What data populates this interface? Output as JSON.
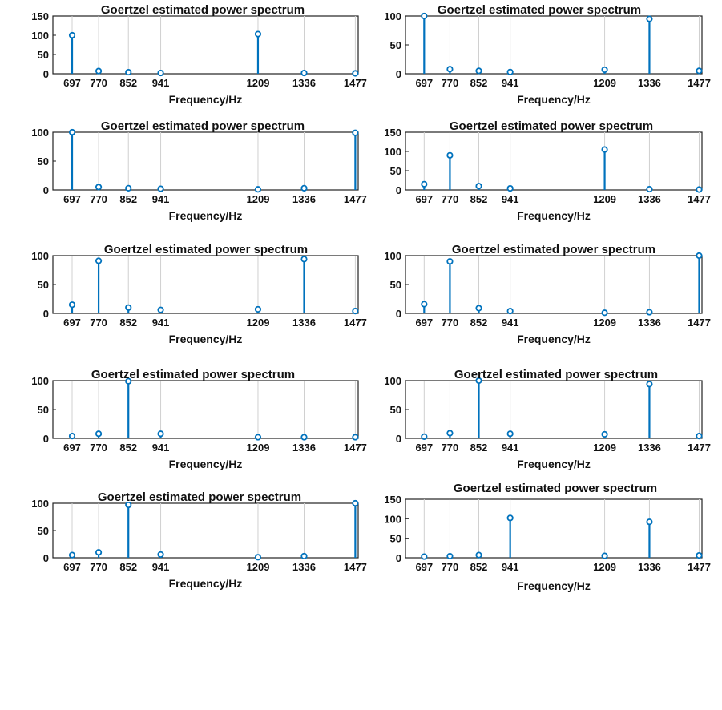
{
  "chart_data": [
    {
      "type": "stem",
      "title": "Goertzel estimated power spectrum",
      "xlabel": "Frequency/Hz",
      "ylabel": "",
      "x": [
        697,
        770,
        852,
        941,
        1209,
        1336,
        1477
      ],
      "xticks": [
        "697",
        "770",
        "852",
        "941",
        "1209",
        "1336",
        "1477"
      ],
      "y": [
        100,
        7,
        4,
        2,
        103,
        2,
        1
      ],
      "ylim": [
        0,
        150
      ],
      "yticks": [
        0,
        50,
        100,
        150
      ],
      "grid": "x",
      "color": "#0072BD"
    },
    {
      "type": "stem",
      "title": "Goertzel estimated power spectrum",
      "xlabel": "Frequency/Hz",
      "ylabel": "",
      "x": [
        697,
        770,
        852,
        941,
        1209,
        1336,
        1477
      ],
      "xticks": [
        "697",
        "770",
        "852",
        "941",
        "1209",
        "1336",
        "1477"
      ],
      "y": [
        100,
        8,
        5,
        3,
        7,
        95,
        5
      ],
      "ylim": [
        0,
        100
      ],
      "yticks": [
        0,
        50,
        100
      ],
      "grid": "x",
      "color": "#0072BD"
    },
    {
      "type": "stem",
      "title": "Goertzel estimated power spectrum",
      "xlabel": "Frequency/Hz",
      "ylabel": "",
      "x": [
        697,
        770,
        852,
        941,
        1209,
        1336,
        1477
      ],
      "xticks": [
        "697",
        "770",
        "852",
        "941",
        "1209",
        "1336",
        "1477"
      ],
      "y": [
        100,
        5,
        3,
        2,
        1,
        3,
        99
      ],
      "ylim": [
        0,
        100
      ],
      "yticks": [
        0,
        50,
        100
      ],
      "grid": "x",
      "color": "#0072BD"
    },
    {
      "type": "stem",
      "title": "Goertzel estimated power spectrum",
      "xlabel": "Frequency/Hz",
      "ylabel": "",
      "x": [
        697,
        770,
        852,
        941,
        1209,
        1336,
        1477
      ],
      "xticks": [
        "697",
        "770",
        "852",
        "941",
        "1209",
        "1336",
        "1477"
      ],
      "y": [
        15,
        90,
        10,
        4,
        105,
        2,
        1
      ],
      "ylim": [
        0,
        150
      ],
      "yticks": [
        0,
        50,
        100,
        150
      ],
      "grid": "x",
      "color": "#0072BD"
    },
    {
      "type": "stem",
      "title": "Goertzel estimated power spectrum",
      "xlabel": "Frequency/Hz",
      "ylabel": "",
      "x": [
        697,
        770,
        852,
        941,
        1209,
        1336,
        1477
      ],
      "xticks": [
        "697",
        "770",
        "852",
        "941",
        "1209",
        "1336",
        "1477"
      ],
      "y": [
        15,
        91,
        10,
        6,
        7,
        94,
        4
      ],
      "ylim": [
        0,
        100
      ],
      "yticks": [
        0,
        50,
        100
      ],
      "grid": "x",
      "color": "#0072BD"
    },
    {
      "type": "stem",
      "title": "Goertzel estimated power spectrum",
      "xlabel": "Frequency/Hz",
      "ylabel": "",
      "x": [
        697,
        770,
        852,
        941,
        1209,
        1336,
        1477
      ],
      "xticks": [
        "697",
        "770",
        "852",
        "941",
        "1209",
        "1336",
        "1477"
      ],
      "y": [
        16,
        90,
        9,
        4,
        1,
        2,
        100
      ],
      "ylim": [
        0,
        100
      ],
      "yticks": [
        0,
        50,
        100
      ],
      "grid": "x",
      "color": "#0072BD"
    },
    {
      "type": "stem",
      "title": "Goertzel estimated power spectrum",
      "xlabel": "Frequency/Hz",
      "ylabel": "",
      "x": [
        697,
        770,
        852,
        941,
        1209,
        1336,
        1477
      ],
      "xticks": [
        "697",
        "770",
        "852",
        "941",
        "1209",
        "1336",
        "1477"
      ],
      "y": [
        4,
        8,
        99,
        8,
        2,
        2,
        2
      ],
      "ylim": [
        0,
        100
      ],
      "yticks": [
        0,
        50,
        100
      ],
      "grid": "x",
      "color": "#0072BD"
    },
    {
      "type": "stem",
      "title": "Goertzel estimated power spectrum",
      "xlabel": "Frequency/Hz",
      "ylabel": "",
      "x": [
        697,
        770,
        852,
        941,
        1209,
        1336,
        1477
      ],
      "xticks": [
        "697",
        "770",
        "852",
        "941",
        "1209",
        "1336",
        "1477"
      ],
      "y": [
        3,
        9,
        100,
        8,
        7,
        94,
        4
      ],
      "ylim": [
        0,
        100
      ],
      "yticks": [
        0,
        50,
        100
      ],
      "grid": "x",
      "color": "#0072BD"
    },
    {
      "type": "stem",
      "title": "Goertzel estimated power spectrum",
      "xlabel": "Frequency/Hz",
      "ylabel": "",
      "x": [
        697,
        770,
        852,
        941,
        1209,
        1336,
        1477
      ],
      "xticks": [
        "697",
        "770",
        "852",
        "941",
        "1209",
        "1336",
        "1477"
      ],
      "y": [
        5,
        10,
        97,
        6,
        1,
        3,
        100
      ],
      "ylim": [
        0,
        100
      ],
      "yticks": [
        0,
        50,
        100
      ],
      "grid": "x",
      "color": "#0072BD"
    },
    {
      "type": "stem",
      "title": "Goertzel estimated power spectrum",
      "xlabel": "Frequency/Hz",
      "ylabel": "",
      "x": [
        697,
        770,
        852,
        941,
        1209,
        1336,
        1477
      ],
      "xticks": [
        "697",
        "770",
        "852",
        "941",
        "1209",
        "1336",
        "1477"
      ],
      "y": [
        3,
        4,
        7,
        102,
        5,
        92,
        6
      ],
      "ylim": [
        0,
        150
      ],
      "yticks": [
        0,
        50,
        100,
        150
      ],
      "grid": "x",
      "color": "#0072BD"
    }
  ]
}
